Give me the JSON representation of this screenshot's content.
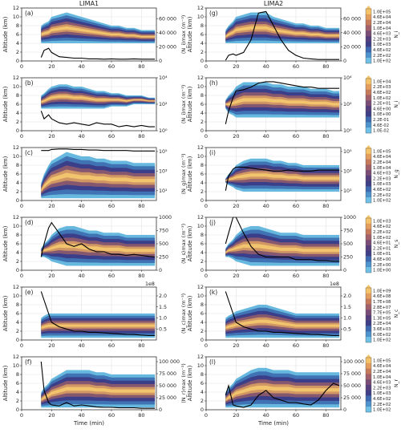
{
  "columns": [
    "LIMA1",
    "LIMA2"
  ],
  "colors": {
    "bg": "#ffffff",
    "grid": "#e3e3e3",
    "axis": "#333333",
    "line": "#000000",
    "band_outer": "#5fb4dc",
    "band_mid": "#3d6fb0",
    "band_core": "#3b3b86",
    "band_hot": "#8a5a6e",
    "band_warm": "#d49a62",
    "band_peak": "#f2c66e"
  },
  "colorbars": [
    {
      "label": "N_i",
      "ticks": [
        "1.0E+05",
        "4.6E+04",
        "2.2E+04",
        "1.0E+04",
        "4.6E+03",
        "2.2E+03",
        "1.0E+03",
        "4.6E+02",
        "2.2E+02",
        "1.0E+02"
      ]
    },
    {
      "label": "N_i",
      "ticks": [
        "1.0E+04",
        "2.2E+03",
        "4.6E+02",
        "1.0E+02",
        "2.2E+01",
        "4.6E+00",
        "1.0E+00",
        "2.2E-01",
        "4.6E-02",
        "1.0E-02"
      ]
    },
    {
      "label": "N_g",
      "ticks": [
        "1.0E+05",
        "4.6E+04",
        "2.2E+04",
        "1.0E+04",
        "4.6E+03",
        "2.2E+03",
        "1.0E+03",
        "4.6E+02",
        "2.2E+02",
        "1.0E+02"
      ]
    },
    {
      "label": "N_s",
      "ticks": [
        "1.0E+03",
        "4.6E+02",
        "2.2E+02",
        "1.0E+02",
        "4.6E+01",
        "2.2E+01",
        "1.0E+01",
        "4.6E+00",
        "2.2E+00",
        "1.0E+00"
      ]
    },
    {
      "label": "N_c",
      "ticks": [
        "1.0E+09",
        "4.6E+08",
        "1.7E+08",
        "2.8E+07",
        "7.7E+05",
        "1.3E+05",
        "2.2E+04",
        "3.6E+03",
        "6.0E+02",
        "1.0E+02"
      ]
    },
    {
      "label": "N_r",
      "ticks": [
        "1.0E+05",
        "4.6E+04",
        "2.2E+04",
        "1.0E+04",
        "4.6E+03",
        "2.2E+03",
        "1.0E+03",
        "4.6E+02",
        "2.2E+02",
        "1.0E+02"
      ]
    }
  ],
  "chart_data": {
    "type": "area",
    "x": [
      13,
      15,
      18,
      20,
      25,
      30,
      35,
      40,
      45,
      50,
      55,
      60,
      65,
      70,
      75,
      80,
      85,
      89
    ],
    "xlim": [
      0,
      90
    ],
    "xticks": [
      0,
      20,
      40,
      60,
      80
    ],
    "xlabel": "Time (min)",
    "ylabel": "Altitude (km)",
    "ylim": [
      0,
      12
    ],
    "yticks": [
      0,
      2,
      4,
      6,
      8,
      10,
      12
    ],
    "panels": [
      {
        "label": "(a)",
        "rlabel": "⟨N_i⟩max (m⁻³)",
        "rlim": [
          0,
          75000
        ],
        "rticks": [
          "0",
          "20 000",
          "40 000",
          "60 000"
        ],
        "rticks_v": [
          0,
          20000,
          40000,
          60000
        ],
        "values": [
          5000,
          15000,
          18000,
          12000,
          6000,
          5000,
          4000,
          4000,
          3000,
          3000,
          2500,
          3000,
          2500,
          2500,
          3000,
          2500,
          2500,
          2500
        ],
        "band": {
          "bottom": [
            4,
            4,
            4,
            4,
            4,
            4,
            4,
            4,
            4,
            4,
            4,
            4,
            4,
            4,
            4,
            4,
            4,
            4
          ],
          "top": [
            8,
            8.5,
            9,
            10,
            10.5,
            11,
            10.5,
            10,
            9.5,
            9,
            8.5,
            8,
            8,
            7.5,
            7.5,
            7,
            7,
            7
          ]
        }
      },
      {
        "label": "(b)",
        "rlabel": "⟨N_i⟩max (m⁻³)",
        "rlim": [
          0,
          4
        ],
        "rticks": [
          "10⁰",
          "10²",
          "10⁴"
        ],
        "rticks_v": [
          0,
          2,
          4
        ],
        "values": [
          1.5,
          0.9,
          1.2,
          0.9,
          0.6,
          0.5,
          0.6,
          0.5,
          0.4,
          0.6,
          0.5,
          0.5,
          0.3,
          0.4,
          0.3,
          0.4,
          0.3,
          0.3
        ],
        "band": {
          "bottom": [
            5,
            5,
            5,
            5,
            5,
            5,
            5,
            5,
            5,
            5,
            5,
            5.5,
            5.5,
            5.5,
            6,
            6,
            6,
            6
          ],
          "top": [
            8,
            8.5,
            9.5,
            10,
            10.5,
            10.5,
            10,
            10,
            9.5,
            9,
            9,
            8.5,
            8.5,
            8,
            8,
            8,
            7.5,
            7.5
          ]
        }
      },
      {
        "label": "(c)",
        "rlabel": "⟨N_g⟩max (m⁻³)",
        "rlim": [
          0,
          5.4
        ],
        "rticks": [
          "10¹",
          "10³",
          "10⁵"
        ],
        "rticks_v": [
          1,
          3,
          5
        ],
        "values": [
          5.1,
          5.1,
          5.1,
          5.2,
          5.25,
          5.25,
          5.2,
          5.2,
          5.15,
          5.15,
          5.1,
          5.1,
          5.1,
          5.1,
          5.05,
          5.05,
          5.05,
          5.05
        ],
        "band": {
          "bottom": [
            0.5,
            0.5,
            0.5,
            0.5,
            0.5,
            0.5,
            0.5,
            0.5,
            0.5,
            0.5,
            0.5,
            0.5,
            0.5,
            0.5,
            0.5,
            0.5,
            0.5,
            0.5
          ],
          "top": [
            4,
            6,
            8,
            9,
            10,
            11,
            10.5,
            10,
            10,
            9.5,
            9.5,
            9,
            9,
            9,
            8.5,
            8.5,
            8.5,
            8.5
          ]
        }
      },
      {
        "label": "(d)",
        "rlabel": "⟨N_s⟩max (m⁻³)",
        "rlim": [
          0,
          1000
        ],
        "rticks": [
          "0",
          "250",
          "500",
          "750",
          "1000"
        ],
        "rticks_v": [
          0,
          250,
          500,
          750,
          1000
        ],
        "values": [
          250,
          500,
          800,
          900,
          700,
          500,
          450,
          500,
          400,
          350,
          350,
          300,
          300,
          280,
          300,
          280,
          260,
          250
        ],
        "band": {
          "bottom": [
            3,
            3,
            2.5,
            2,
            1.5,
            1,
            1,
            1,
            1,
            1,
            1,
            1,
            1,
            1,
            1,
            1,
            1,
            1
          ],
          "top": [
            5,
            6,
            7,
            8,
            9.5,
            10,
            10,
            9.5,
            9,
            9,
            8.5,
            8.5,
            8.5,
            8,
            8,
            8,
            8,
            8
          ]
        }
      },
      {
        "label": "(e)",
        "rlabel": "⟨N_c⟩max (m⁻³)",
        "rlim": [
          0,
          240000000
        ],
        "rticks": [
          "0.5",
          "1.0",
          "1.5",
          "2.0"
        ],
        "rticks_v": [
          50000000,
          100000000,
          150000000,
          200000000
        ],
        "rexp": "1e8",
        "values": [
          220000000,
          180000000,
          120000000,
          80000000,
          60000000,
          50000000,
          40000000,
          40000000,
          35000000,
          35000000,
          32000000,
          30000000,
          28000000,
          26000000,
          25000000,
          22000000,
          20000000,
          20000000
        ],
        "band": {
          "bottom": [
            0.5,
            0.5,
            0.5,
            0.5,
            0.5,
            0.5,
            0.5,
            0.5,
            0.5,
            0.5,
            0.5,
            0.5,
            0.5,
            0.5,
            0.5,
            0.5,
            0.5,
            0.5
          ],
          "top": [
            5,
            5.5,
            6,
            6,
            6,
            6,
            6,
            6,
            6,
            6,
            6,
            6,
            6,
            6,
            6,
            6,
            6,
            6
          ]
        }
      },
      {
        "label": "(f)",
        "rlabel": "⟨N_r⟩max (m⁻³)",
        "rlim": [
          0,
          110000
        ],
        "rticks": [
          "0",
          "25 000",
          "50 000",
          "75 000",
          "100 000"
        ],
        "rticks_v": [
          0,
          25000,
          50000,
          75000,
          100000
        ],
        "values": [
          100000,
          40000,
          15000,
          10000,
          8000,
          15000,
          8000,
          10000,
          8000,
          6000,
          5000,
          5000,
          4000,
          4000,
          4000,
          3000,
          3000,
          3000
        ],
        "band": {
          "bottom": [
            0.5,
            0.5,
            0.5,
            0.5,
            0.5,
            0.5,
            0.5,
            0.5,
            0.5,
            0.5,
            0.5,
            0.5,
            0.5,
            0.5,
            0.5,
            0.5,
            0.5,
            0.5
          ],
          "top": [
            4,
            5,
            6,
            7,
            8,
            9,
            9,
            9,
            9,
            8.5,
            8.5,
            8,
            8,
            8,
            8,
            8,
            8,
            8
          ]
        }
      },
      {
        "label": "(g)",
        "rlabel": "⟨N_i⟩max (m⁻³)",
        "rlim": [
          0,
          75000
        ],
        "rticks": [
          "0",
          "20 000",
          "40 000",
          "60 000"
        ],
        "rticks_v": [
          0,
          20000,
          40000,
          60000
        ],
        "values": [
          1000,
          8000,
          10000,
          8000,
          12000,
          30000,
          68000,
          70000,
          50000,
          30000,
          15000,
          8000,
          4000,
          3000,
          2000,
          2000,
          2000,
          2000
        ],
        "band": {
          "bottom": [
            4,
            4,
            4,
            4,
            4,
            4,
            4,
            4,
            4,
            4,
            4,
            4,
            4,
            4,
            4,
            4,
            4,
            4
          ],
          "top": [
            7,
            8,
            9,
            10,
            10.5,
            11,
            11,
            11,
            10,
            9.5,
            9,
            8.5,
            8.5,
            8,
            8,
            7.5,
            7.5,
            7.5
          ]
        }
      },
      {
        "label": "(h)",
        "rlabel": "⟨N_i⟩max (m⁻³)",
        "rlim": [
          0,
          4
        ],
        "rticks": [
          "10⁰",
          "10²",
          "10⁴"
        ],
        "rticks_v": [
          0,
          2,
          4
        ],
        "values": [
          0.5,
          1.5,
          2.5,
          3.0,
          3.1,
          3.3,
          3.6,
          3.7,
          3.7,
          3.6,
          3.5,
          3.4,
          3.3,
          3.3,
          3.2,
          3.2,
          3.2,
          3.2
        ],
        "band": {
          "bottom": [
            5,
            4,
            3.5,
            3,
            3,
            3,
            3,
            3,
            3,
            3,
            3,
            3,
            3,
            3,
            3,
            3,
            3,
            3
          ],
          "top": [
            7,
            8,
            9,
            10,
            11,
            11,
            11,
            11,
            10.5,
            10.5,
            10,
            10,
            10,
            9.5,
            9.5,
            9.5,
            9,
            9
          ]
        }
      },
      {
        "label": "(i)",
        "rlabel": "⟨N_g⟩max (m⁻³)",
        "rlim": [
          0,
          5.4
        ],
        "rticks": [
          "10¹",
          "10³",
          "10⁵"
        ],
        "rticks_v": [
          1,
          3,
          5
        ],
        "values": [
          1,
          2.5,
          3.2,
          3.4,
          3.4,
          3.3,
          3.2,
          3.1,
          3.0,
          3.0,
          3.1,
          3.0,
          3.0,
          3.0,
          3.1,
          3.1,
          3.1,
          3.1
        ],
        "band": {
          "bottom": [
            4,
            3.5,
            3,
            2.5,
            2,
            2,
            2,
            2,
            2,
            2,
            2,
            2,
            2,
            2,
            2,
            2,
            2,
            2
          ],
          "top": [
            5,
            6,
            7,
            8,
            9,
            9.5,
            9.5,
            9.5,
            9,
            9,
            8.5,
            8.5,
            8,
            8,
            8,
            8,
            8,
            8
          ]
        }
      },
      {
        "label": "(j)",
        "rlabel": "⟨N_s⟩max (m⁻³)",
        "rlim": [
          0,
          1000
        ],
        "rticks": [
          "0",
          "250",
          "500",
          "750",
          "1000"
        ],
        "rticks_v": [
          0,
          250,
          500,
          750,
          1000
        ],
        "values": [
          500,
          700,
          1050,
          1000,
          700,
          450,
          300,
          250,
          250,
          250,
          250,
          200,
          200,
          200,
          180,
          180,
          170,
          170
        ],
        "band": {
          "bottom": [
            3,
            3,
            2.5,
            2,
            1.5,
            1,
            1,
            1,
            1,
            1,
            1,
            1,
            1,
            1,
            1,
            1,
            1,
            1
          ],
          "top": [
            5,
            6,
            7,
            8,
            9.5,
            10,
            10,
            9.5,
            9,
            8.5,
            8.5,
            8.5,
            8,
            8,
            8,
            8,
            8,
            8
          ]
        }
      },
      {
        "label": "(k)",
        "rlabel": "⟨N_c⟩max (m⁻³)",
        "rlim": [
          0,
          240000000
        ],
        "rticks": [
          "0.5",
          "1.0",
          "1.5",
          "2.0"
        ],
        "rticks_v": [
          50000000,
          100000000,
          150000000,
          200000000
        ],
        "rexp": "1e8",
        "values": [
          220000000,
          180000000,
          120000000,
          80000000,
          60000000,
          50000000,
          40000000,
          40000000,
          35000000,
          35000000,
          32000000,
          30000000,
          28000000,
          26000000,
          25000000,
          22000000,
          20000000,
          20000000
        ],
        "band": {
          "bottom": [
            0.5,
            0.5,
            0.5,
            0.5,
            0.5,
            0.5,
            0.5,
            0.5,
            0.5,
            0.5,
            0.5,
            0.5,
            0.5,
            0.5,
            0.5,
            0.5,
            0.5,
            0.5
          ],
          "top": [
            5,
            5.5,
            6,
            6.5,
            7,
            7.5,
            8,
            8,
            7.5,
            7,
            6.5,
            6,
            6,
            6,
            6,
            6,
            6,
            6
          ]
        }
      },
      {
        "label": "(l)",
        "rlabel": "⟨N_r⟩max (m⁻³)",
        "rlim": [
          0,
          110000
        ],
        "rticks": [
          "0",
          "25 000",
          "50 000",
          "75 000",
          "100 000"
        ],
        "rticks_v": [
          0,
          25000,
          50000,
          75000,
          100000
        ],
        "values": [
          30000,
          50000,
          10000,
          8000,
          5000,
          10000,
          30000,
          40000,
          25000,
          20000,
          15000,
          15000,
          12000,
          10000,
          20000,
          40000,
          55000,
          50000
        ],
        "band": {
          "bottom": [
            0.5,
            0.5,
            0.5,
            0.5,
            0.5,
            0.5,
            0.5,
            0.5,
            0.5,
            0.5,
            0.5,
            0.5,
            0.5,
            0.5,
            0.5,
            0.5,
            0.5,
            0.5
          ],
          "top": [
            4,
            5,
            6,
            7,
            8,
            9,
            9.5,
            9.5,
            9,
            9,
            9,
            8.5,
            8.5,
            8.5,
            8.5,
            8.5,
            8.5,
            8.5
          ]
        }
      }
    ]
  }
}
